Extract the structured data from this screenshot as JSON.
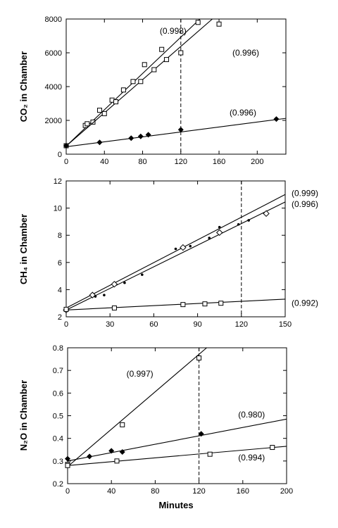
{
  "figure": {
    "xlabel": "Minutes"
  },
  "chart_data": [
    {
      "type": "scatter",
      "ylabel": "CO2 in Chamber",
      "xlim": [
        0,
        230
      ],
      "ylim": [
        0,
        8000
      ],
      "xticks": [
        0,
        40,
        80,
        120,
        160,
        200
      ],
      "yticks": [
        0,
        2000,
        4000,
        6000,
        8000
      ],
      "reference_x": 120,
      "series": [
        {
          "marker": "open-square",
          "points": [
            [
              0,
              500
            ],
            [
              20,
              1700
            ],
            [
              28,
              1900
            ],
            [
              35,
              2600
            ],
            [
              48,
              3200
            ],
            [
              60,
              3800
            ],
            [
              70,
              4300
            ],
            [
              82,
              5300
            ],
            [
              100,
              6200
            ],
            [
              120,
              6000
            ],
            [
              138,
              7800
            ]
          ],
          "line": [
            [
              0,
              480
            ],
            [
              140,
              8000
            ]
          ]
        },
        {
          "marker": "open-square",
          "points": [
            [
              0,
              500
            ],
            [
              22,
              1800
            ],
            [
              40,
              2400
            ],
            [
              52,
              3100
            ],
            [
              78,
              4300
            ],
            [
              92,
              5000
            ],
            [
              105,
              5600
            ],
            [
              160,
              7700
            ]
          ],
          "line": [
            [
              0,
              480
            ],
            [
              153,
              8000
            ]
          ]
        },
        {
          "marker": "filled-diamond",
          "points": [
            [
              0,
              500
            ],
            [
              35,
              700
            ],
            [
              68,
              950
            ],
            [
              78,
              1050
            ],
            [
              86,
              1150
            ],
            [
              120,
              1450
            ],
            [
              220,
              2080
            ]
          ],
          "line": [
            [
              0,
              440
            ],
            [
              230,
              2120
            ]
          ]
        }
      ],
      "annotations": [
        {
          "text": "(0.998)",
          "x": 112,
          "y": 7300
        },
        {
          "text": "(0.996)",
          "x": 188,
          "y": 6000
        },
        {
          "text": "(0.996)",
          "x": 185,
          "y": 2450
        }
      ]
    },
    {
      "type": "scatter",
      "ylabel": "CH4 in Chamber",
      "xlim": [
        0,
        150
      ],
      "ylim": [
        2,
        12
      ],
      "xticks": [
        0,
        30,
        60,
        90,
        120,
        150
      ],
      "yticks": [
        2,
        4,
        6,
        8,
        10,
        12
      ],
      "reference_x": 120,
      "series": [
        {
          "marker": "small-dot",
          "points": [
            [
              0,
              2.6
            ],
            [
              20,
              3.5
            ],
            [
              26,
              3.6
            ],
            [
              40,
              4.5
            ],
            [
              52,
              5.1
            ],
            [
              75,
              7.0
            ],
            [
              85,
              7.2
            ],
            [
              98,
              7.8
            ],
            [
              105,
              8.6
            ],
            [
              118,
              8.8
            ],
            [
              125,
              9.1
            ]
          ],
          "line": [
            [
              0,
              2.65
            ],
            [
              150,
              11.0
            ]
          ]
        },
        {
          "marker": "open-diamond",
          "points": [
            [
              0,
              2.5
            ],
            [
              18,
              3.6
            ],
            [
              33,
              4.4
            ],
            [
              80,
              7.1
            ],
            [
              105,
              8.2
            ],
            [
              137,
              9.6
            ]
          ],
          "line": [
            [
              0,
              2.5
            ],
            [
              150,
              10.45
            ]
          ]
        },
        {
          "marker": "open-square",
          "points": [
            [
              0,
              2.55
            ],
            [
              33,
              2.65
            ],
            [
              80,
              2.9
            ],
            [
              95,
              2.95
            ],
            [
              106,
              3.0
            ]
          ],
          "line": [
            [
              0,
              2.5
            ],
            [
              150,
              3.3
            ]
          ]
        }
      ],
      "annotations": [
        {
          "text": "(0.999)",
          "x": 158,
          "y": 11.1,
          "outside": true
        },
        {
          "text": "(0.996)",
          "x": 158,
          "y": 10.3,
          "outside": true
        },
        {
          "text": "(0.992)",
          "x": 158,
          "y": 3.0,
          "outside": true
        }
      ]
    },
    {
      "type": "scatter",
      "ylabel": "N2O in Chamber",
      "xlim": [
        0,
        200
      ],
      "ylim": [
        0.2,
        0.8
      ],
      "xticks": [
        0,
        40,
        80,
        120,
        160,
        200
      ],
      "yticks": [
        0.2,
        0.3,
        0.4,
        0.5,
        0.6,
        0.7,
        0.8
      ],
      "reference_x": 120,
      "series": [
        {
          "marker": "open-square",
          "points": [
            [
              0,
              0.285
            ],
            [
              50,
              0.46
            ],
            [
              120,
              0.755
            ]
          ],
          "line": [
            [
              0,
              0.275
            ],
            [
              127,
              0.8
            ]
          ]
        },
        {
          "marker": "filled-diamond",
          "points": [
            [
              0,
              0.31
            ],
            [
              20,
              0.32
            ],
            [
              40,
              0.345
            ],
            [
              50,
              0.34
            ],
            [
              122,
              0.42
            ]
          ],
          "line": [
            [
              0,
              0.3
            ],
            [
              200,
              0.485
            ]
          ]
        },
        {
          "marker": "open-square",
          "points": [
            [
              0,
              0.28
            ],
            [
              45,
              0.3
            ],
            [
              130,
              0.33
            ],
            [
              187,
              0.36
            ]
          ],
          "line": [
            [
              0,
              0.28
            ],
            [
              200,
              0.365
            ]
          ]
        }
      ],
      "annotations": [
        {
          "text": "(0.997)",
          "x": 66,
          "y": 0.685
        },
        {
          "text": "(0.980)",
          "x": 168,
          "y": 0.505
        },
        {
          "text": "(0.994)",
          "x": 168,
          "y": 0.315
        }
      ]
    }
  ]
}
